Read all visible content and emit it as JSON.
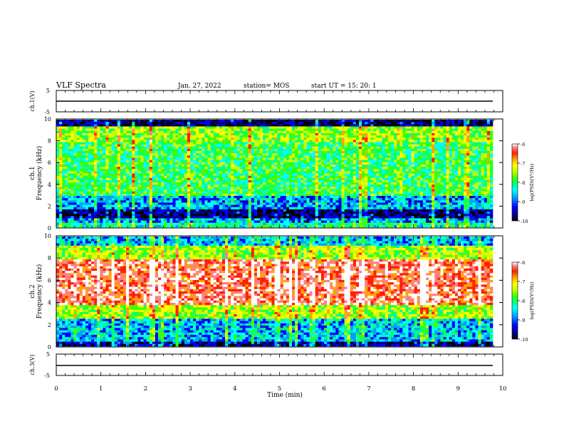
{
  "header": {
    "title": "VLF Spectra",
    "date": "Jan. 27, 2022",
    "station": "station= MOS",
    "start": "start UT =  15: 20: 1"
  },
  "colors": {
    "spectrogram_ramp": [
      "#000000",
      "#00008b",
      "#0000ff",
      "#00a0ff",
      "#00ffff",
      "#00ff80",
      "#40ff00",
      "#c8ff00",
      "#ffff00",
      "#ffa500",
      "#ff2000",
      "#ff8080",
      "#ffffff"
    ],
    "frame": "#000000"
  },
  "chart_data": [
    {
      "type": "line",
      "name": "ch1-waveform",
      "ylabel": "ch.1(V)",
      "ylim": [
        -5,
        5
      ],
      "yticks": [
        "5",
        "-5"
      ],
      "xlim": [
        0,
        10
      ],
      "values_description_level": 0
    },
    {
      "type": "heatmap",
      "name": "ch1-spectrogram",
      "ylabel": "ch.1",
      "ylabel2": "Frequency (kHz)",
      "ylim": [
        0,
        10
      ],
      "yticks": [
        "0",
        "2",
        "4",
        "6",
        "8",
        "10"
      ],
      "xlim": [
        0,
        10
      ],
      "colorbar": {
        "label": "log(PSD)(V²/Hz)",
        "range": [
          -10,
          -6
        ],
        "ticks": [
          "-6",
          "-7",
          "-8",
          "-9",
          "-10"
        ]
      }
    },
    {
      "type": "heatmap",
      "name": "ch2-spectrogram",
      "ylabel": "ch.2",
      "ylabel2": "Frequency (kHz)",
      "ylim": [
        0,
        10
      ],
      "yticks": [
        "0",
        "2",
        "4",
        "6",
        "8",
        "10"
      ],
      "xlim": [
        0,
        10
      ],
      "colorbar": {
        "label": "log(PSD)(V²/Hz)",
        "range": [
          -10,
          -6
        ],
        "ticks": [
          "-6",
          "-7",
          "-8",
          "-9",
          "-10"
        ]
      }
    },
    {
      "type": "line",
      "name": "ch3-waveform",
      "ylabel": "ch.3(V)",
      "ylim": [
        -5,
        5
      ],
      "yticks": [
        "5",
        "-5"
      ],
      "xlim": [
        0,
        10
      ],
      "values_description_level": 0
    }
  ],
  "xaxis": {
    "label": "Time (min)",
    "ticks": [
      "0",
      "1",
      "2",
      "3",
      "4",
      "5",
      "6",
      "7",
      "8",
      "9",
      "10"
    ]
  }
}
